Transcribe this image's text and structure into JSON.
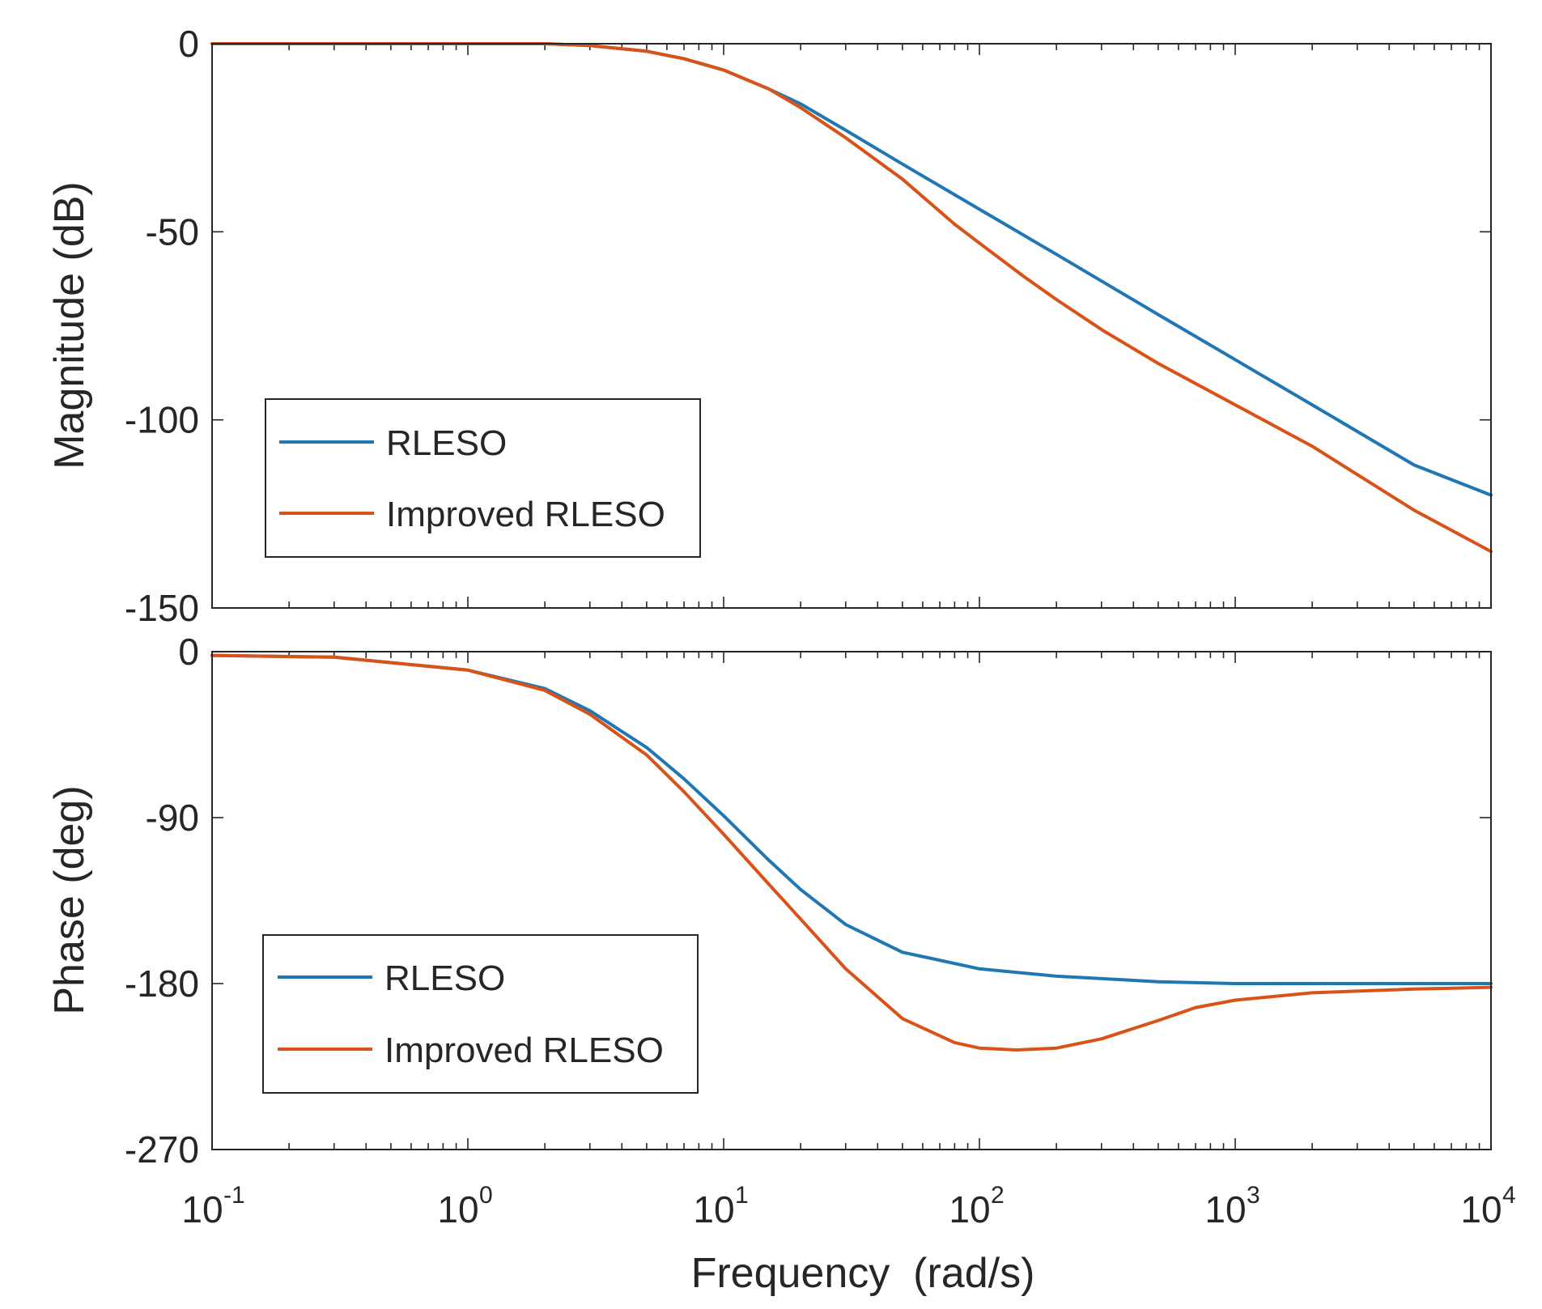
{
  "chart_data": [
    {
      "type": "line",
      "name": "magnitude",
      "xscale": "log",
      "xlim": [
        0.1,
        10000
      ],
      "ylim": [
        -150,
        0
      ],
      "yticks": [
        0,
        -50,
        -100,
        -150
      ],
      "ytick_labels": [
        "0",
        "-50",
        "-100",
        "-150"
      ],
      "ylabel": "Magnitude (dB)",
      "xlabel": "",
      "legend": {
        "location": "lower-left",
        "entries": [
          "RLESO",
          "Improved RLESO"
        ]
      },
      "series": [
        {
          "name": "RLESO",
          "color": "#1f77b4",
          "x": [
            0.1,
            0.3,
            1,
            2,
            3,
            5,
            7,
            10,
            15,
            20,
            30,
            50,
            100,
            200,
            500,
            1000,
            2000,
            5000,
            10000
          ],
          "y": [
            0,
            0,
            0,
            0,
            -0.5,
            -2,
            -4,
            -7,
            -12,
            -16,
            -23,
            -32,
            -44,
            -56,
            -72,
            -84,
            -96,
            -112,
            -120
          ]
        },
        {
          "name": "Improved RLESO",
          "color": "#d95319",
          "x": [
            0.1,
            0.3,
            1,
            2,
            3,
            5,
            7,
            10,
            15,
            20,
            30,
            50,
            80,
            100,
            150,
            200,
            300,
            500,
            1000,
            2000,
            5000,
            10000
          ],
          "y": [
            0,
            0,
            0,
            0,
            -0.5,
            -2,
            -4,
            -7,
            -12,
            -17,
            -25,
            -36,
            -48,
            -53,
            -62,
            -68,
            -76,
            -85,
            -96,
            -107,
            -124,
            -135
          ]
        }
      ]
    },
    {
      "type": "line",
      "name": "phase",
      "xscale": "log",
      "xlim": [
        0.1,
        10000
      ],
      "ylim": [
        -270,
        0
      ],
      "yticks": [
        0,
        -90,
        -180,
        -270
      ],
      "ytick_labels": [
        "0",
        "-90",
        "-180",
        "-270"
      ],
      "ylabel": "Phase (deg)",
      "xlabel": "Frequency  (rad/s)",
      "xticks": [
        0.1,
        1,
        10,
        100,
        1000,
        10000
      ],
      "xtick_labels": [
        {
          "base": "10",
          "exp": "-1"
        },
        {
          "base": "10",
          "exp": "0"
        },
        {
          "base": "10",
          "exp": "1"
        },
        {
          "base": "10",
          "exp": "2"
        },
        {
          "base": "10",
          "exp": "3"
        },
        {
          "base": "10",
          "exp": "4"
        }
      ],
      "legend": {
        "location": "lower-left",
        "entries": [
          "RLESO",
          "Improved RLESO"
        ]
      },
      "series": [
        {
          "name": "RLESO",
          "color": "#1f77b4",
          "x": [
            0.1,
            0.3,
            1,
            2,
            3,
            5,
            7,
            10,
            15,
            20,
            30,
            50,
            100,
            200,
            500,
            1000,
            3000,
            10000
          ],
          "y": [
            -2,
            -3,
            -10,
            -20,
            -32,
            -52,
            -69,
            -89,
            -113,
            -129,
            -148,
            -163,
            -172,
            -176,
            -179,
            -180,
            -180,
            -180
          ]
        },
        {
          "name": "Improved RLESO",
          "color": "#d95319",
          "x": [
            0.1,
            0.3,
            1,
            2,
            3,
            5,
            7,
            10,
            15,
            20,
            30,
            50,
            80,
            100,
            140,
            200,
            300,
            500,
            700,
            1000,
            2000,
            5000,
            10000
          ],
          "y": [
            -2,
            -3,
            -10,
            -21,
            -34,
            -56,
            -76,
            -99,
            -126,
            -145,
            -172,
            -199,
            -212,
            -215,
            -216,
            -215,
            -210,
            -200,
            -193,
            -189,
            -185,
            -183,
            -182
          ]
        }
      ]
    }
  ]
}
